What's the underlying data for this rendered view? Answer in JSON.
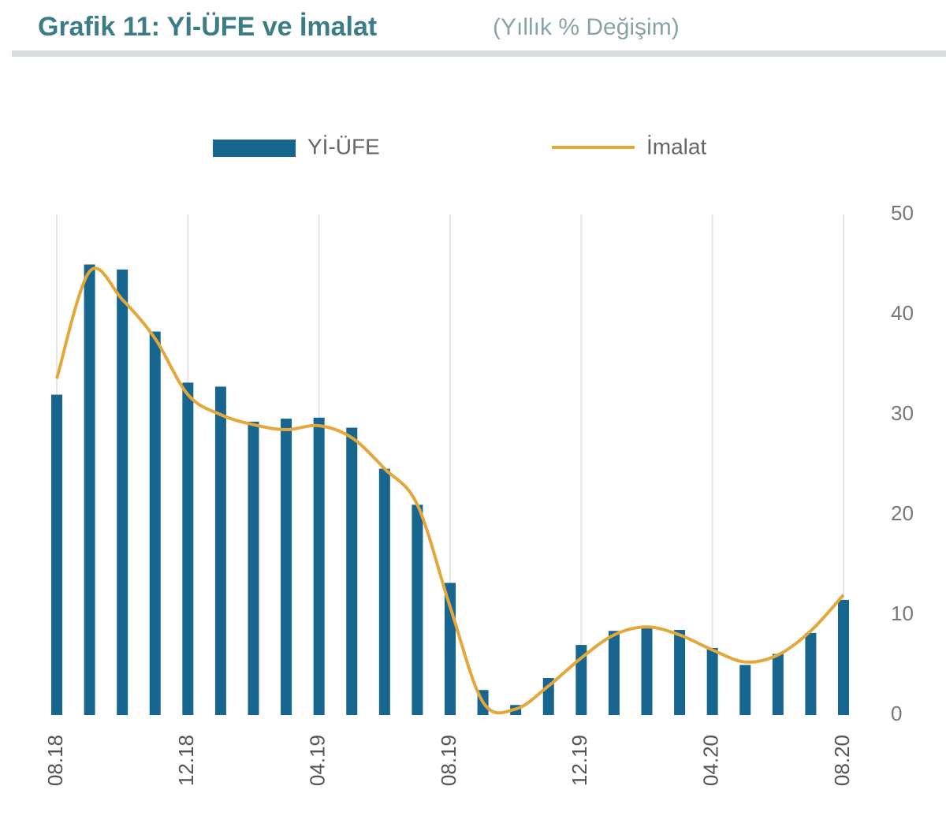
{
  "chart_data": {
    "type": "bar",
    "title": "Grafik 11: Yİ-ÜFE ve İmalat",
    "subtitle": "(Yıllık % Değişim)",
    "categories": [
      "08.18",
      null,
      null,
      null,
      "12.18",
      null,
      null,
      null,
      "04.19",
      null,
      null,
      null,
      "08.19",
      null,
      null,
      null,
      "12.19",
      null,
      null,
      null,
      "04.20",
      null,
      null,
      null,
      "08.20"
    ],
    "series": [
      {
        "name": "Yİ-ÜFE",
        "type": "bar",
        "color": "#17668f",
        "values": [
          32.0,
          45.0,
          44.5,
          38.3,
          33.2,
          32.8,
          29.3,
          29.6,
          29.7,
          28.7,
          24.6,
          21.0,
          13.2,
          2.5,
          1.0,
          3.7,
          7.0,
          8.4,
          8.8,
          8.5,
          6.7,
          5.0,
          6.1,
          8.2,
          11.5
        ]
      },
      {
        "name": "İmalat",
        "type": "line",
        "color": "#e3a73a",
        "values": [
          33.6,
          44.3,
          41.5,
          37.6,
          32.0,
          30.0,
          29.0,
          28.5,
          28.9,
          27.7,
          24.6,
          21.0,
          10.8,
          1.3,
          0.6,
          2.9,
          5.7,
          8.0,
          8.8,
          8.0,
          6.5,
          5.3,
          6.0,
          8.4,
          12.0
        ]
      }
    ],
    "ylim": [
      0,
      50
    ],
    "yticks": [
      0,
      10,
      20,
      30,
      40,
      50
    ],
    "grid": true
  }
}
